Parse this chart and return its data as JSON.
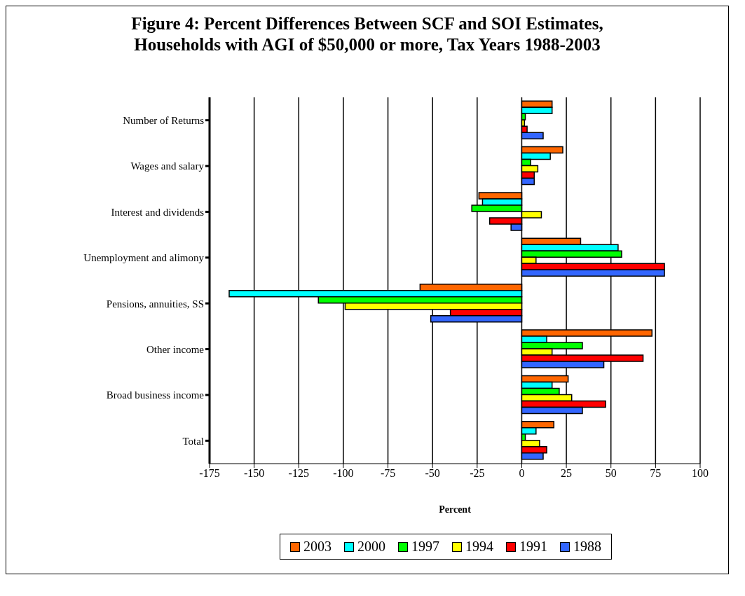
{
  "chart_data": {
    "type": "bar",
    "orientation": "horizontal",
    "title": "Figure 4: Percent Differences Between SCF and SOI Estimates, Households with AGI of $50,000 or more, Tax Years 1988-2003",
    "xlabel": "Percent",
    "categories": [
      "Number of Returns",
      "Wages and salary",
      "Interest and dividends",
      "Unemployment and alimony",
      "Pensions, annuities, SS",
      "Other income",
      "Broad business income",
      "Total"
    ],
    "series": [
      {
        "name": "2003",
        "color": "#ff6600",
        "values": [
          17,
          23,
          -24,
          33,
          -57,
          73,
          26,
          18
        ]
      },
      {
        "name": "2000",
        "color": "#00ffff",
        "values": [
          17,
          16,
          -22,
          54,
          -164,
          14,
          17,
          8
        ]
      },
      {
        "name": "1997",
        "color": "#00ff00",
        "values": [
          2,
          5,
          -28,
          56,
          -114,
          34,
          21,
          2
        ]
      },
      {
        "name": "1994",
        "color": "#ffff00",
        "values": [
          1.5,
          9,
          11,
          8,
          -99,
          17,
          28,
          10
        ]
      },
      {
        "name": "1991",
        "color": "#ff0000",
        "values": [
          3,
          7,
          -18,
          80,
          -40,
          68,
          47,
          14
        ]
      },
      {
        "name": "1988",
        "color": "#3366ff",
        "values": [
          12,
          7,
          -6,
          80,
          -51,
          46,
          34,
          12
        ]
      }
    ],
    "xlim": [
      -175,
      100
    ],
    "xticks": [
      -175,
      -150,
      -125,
      -100,
      -75,
      -50,
      -25,
      0,
      25,
      50,
      75,
      100
    ],
    "grid": "x",
    "legend": "bottom"
  }
}
